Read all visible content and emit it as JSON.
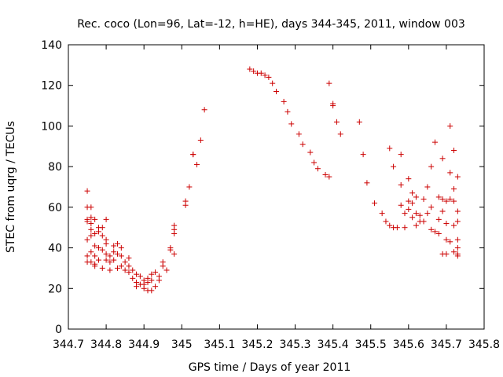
{
  "chart_data": {
    "type": "scatter",
    "title": "Rec. coco (Lon=96, Lat=-12, h=HE), days 344-345, 2011, window 003",
    "xlabel": "GPS time / Days of year 2011",
    "ylabel": "STEC from uqrg / TECUs",
    "xlim": [
      344.7,
      345.8
    ],
    "ylim": [
      0,
      140
    ],
    "x_ticks": [
      "344.7",
      "344.8",
      "344.9",
      "345",
      "345.1",
      "345.2",
      "345.3",
      "345.4",
      "345.5",
      "345.6",
      "345.7",
      "345.8"
    ],
    "y_ticks": [
      "0",
      "20",
      "40",
      "60",
      "80",
      "100",
      "120",
      "140"
    ],
    "grid": false,
    "legend": "none",
    "marker": "+",
    "color": "#cc0000",
    "series": [
      {
        "x": [
          344.75,
          344.75,
          344.75,
          344.75,
          344.75,
          344.75,
          344.75,
          344.76,
          344.76,
          344.76,
          344.76,
          344.76,
          344.76,
          344.76,
          344.77,
          344.77,
          344.77,
          344.77,
          344.77,
          344.77,
          344.78,
          344.78,
          344.78,
          344.78,
          344.79,
          344.79,
          344.79,
          344.79,
          344.8,
          344.8,
          344.8,
          344.8,
          344.8,
          344.81,
          344.81,
          344.81,
          344.82,
          344.82,
          344.82,
          344.83,
          344.83,
          344.83,
          344.84,
          344.84,
          344.84,
          344.85,
          344.85,
          344.86,
          344.86,
          344.86,
          344.87,
          344.87,
          344.88,
          344.88,
          344.88,
          344.89,
          344.89,
          344.9,
          344.9,
          344.9,
          344.91,
          344.91,
          344.91,
          344.92,
          344.92,
          344.92,
          344.93,
          344.93,
          344.94,
          344.94,
          344.95,
          344.95,
          344.96,
          344.97,
          344.97,
          344.98,
          344.98,
          344.98,
          344.98,
          345.01,
          345.01,
          345.02,
          345.03,
          345.03,
          345.04,
          345.05,
          345.06,
          345.18,
          345.19,
          345.2,
          345.21,
          345.22,
          345.23,
          345.24,
          345.25,
          345.27,
          345.28,
          345.29,
          345.31,
          345.32,
          345.34,
          345.35,
          345.36,
          345.38,
          345.39,
          345.39,
          345.4,
          345.4,
          345.41,
          345.42,
          345.47,
          345.48,
          345.49,
          345.51,
          345.53,
          345.54,
          345.55,
          345.55,
          345.56,
          345.56,
          345.57,
          345.58,
          345.58,
          345.58,
          345.59,
          345.59,
          345.6,
          345.6,
          345.6,
          345.61,
          345.61,
          345.61,
          345.62,
          345.62,
          345.62,
          345.63,
          345.63,
          345.64,
          345.64,
          345.65,
          345.65,
          345.66,
          345.66,
          345.66,
          345.67,
          345.67,
          345.68,
          345.68,
          345.68,
          345.69,
          345.69,
          345.69,
          345.69,
          345.7,
          345.7,
          345.7,
          345.7,
          345.71,
          345.71,
          345.71,
          345.71,
          345.72,
          345.72,
          345.72,
          345.72,
          345.72,
          345.73,
          345.73,
          345.73,
          345.73,
          345.73,
          345.73,
          345.73
        ],
        "y": [
          68,
          60,
          54,
          53,
          44,
          36,
          33,
          60,
          55,
          52,
          49,
          46,
          38,
          33,
          54,
          47,
          41,
          36,
          32,
          31,
          50,
          48,
          40,
          34,
          50,
          46,
          39,
          30,
          54,
          44,
          42,
          37,
          34,
          36,
          33,
          29,
          41,
          38,
          34,
          42,
          37,
          30,
          40,
          36,
          31,
          33,
          29,
          35,
          31,
          28,
          29,
          25,
          27,
          23,
          21,
          26,
          22,
          24,
          22,
          20,
          25,
          23,
          19,
          27,
          24,
          19,
          28,
          21,
          26,
          24,
          31,
          33,
          29,
          40,
          39,
          51,
          49,
          47,
          37,
          63,
          61,
          70,
          86,
          86,
          81,
          93,
          108,
          128,
          127,
          126,
          126,
          125,
          124,
          121,
          117,
          112,
          107,
          101,
          96,
          91,
          87,
          82,
          79,
          76,
          121,
          75,
          110,
          111,
          102,
          96,
          102,
          86,
          72,
          62,
          57,
          53,
          51,
          89,
          50,
          80,
          50,
          86,
          71,
          61,
          57,
          50,
          74,
          63,
          59,
          67,
          62,
          55,
          65,
          57,
          51,
          56,
          53,
          64,
          53,
          70,
          57,
          49,
          80,
          60,
          48,
          92,
          65,
          54,
          47,
          84,
          64,
          58,
          37,
          63,
          52,
          44,
          37,
          100,
          77,
          64,
          43,
          88,
          69,
          63,
          51,
          38,
          75,
          58,
          53,
          44,
          40,
          37,
          36
        ]
      }
    ]
  }
}
